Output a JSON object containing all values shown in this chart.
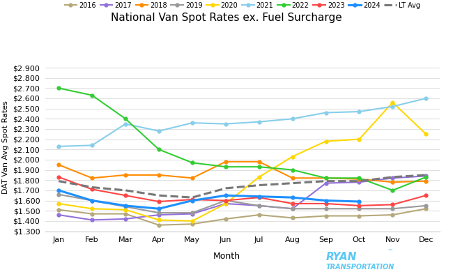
{
  "title": "National Van Spot Rates ex. Fuel Surcharge",
  "xlabel": "Month",
  "ylabel": "DAT Van Avg Spot Rates",
  "months": [
    "Jan",
    "Feb",
    "Mar",
    "Apr",
    "May",
    "Jun",
    "Jul",
    "Aug",
    "Sep",
    "Oct",
    "Nov",
    "Dec"
  ],
  "ylim": [
    1.3,
    2.95
  ],
  "yticks": [
    1.3,
    1.4,
    1.5,
    1.6,
    1.7,
    1.8,
    1.9,
    2.0,
    2.1,
    2.2,
    2.3,
    2.4,
    2.5,
    2.6,
    2.7,
    2.8,
    2.9
  ],
  "series": {
    "2016": {
      "color": "#b5a87a",
      "data": [
        1.51,
        1.47,
        1.47,
        1.36,
        1.37,
        1.42,
        1.46,
        1.43,
        1.45,
        1.45,
        1.46,
        1.52
      ],
      "marker": "o",
      "linestyle": "-",
      "linewidth": 1.5,
      "markersize": 3.5
    },
    "2017": {
      "color": "#9370DB",
      "data": [
        1.46,
        1.41,
        1.42,
        1.46,
        1.47,
        1.57,
        1.55,
        1.52,
        1.77,
        1.78,
        1.82,
        1.84
      ],
      "marker": "o",
      "linestyle": "-",
      "linewidth": 1.5,
      "markersize": 3.5
    },
    "2018": {
      "color": "#FF8C00",
      "data": [
        1.95,
        1.82,
        1.85,
        1.85,
        1.82,
        1.98,
        1.98,
        1.82,
        1.82,
        1.81,
        1.78,
        1.79
      ],
      "marker": "o",
      "linestyle": "-",
      "linewidth": 1.5,
      "markersize": 3.5
    },
    "2019": {
      "color": "#999999",
      "data": [
        1.66,
        1.6,
        1.54,
        1.48,
        1.48,
        1.6,
        1.55,
        1.52,
        1.52,
        1.52,
        1.52,
        1.55
      ],
      "marker": "o",
      "linestyle": "-",
      "linewidth": 1.5,
      "markersize": 3.5
    },
    "2020": {
      "color": "#FFD700",
      "data": [
        1.57,
        1.52,
        1.51,
        1.41,
        1.4,
        1.57,
        1.83,
        2.03,
        2.18,
        2.2,
        2.56,
        2.25
      ],
      "marker": "o",
      "linestyle": "-",
      "linewidth": 1.5,
      "markersize": 3.5
    },
    "2021": {
      "color": "#87CEEB",
      "data": [
        2.13,
        2.14,
        2.35,
        2.28,
        2.36,
        2.35,
        2.37,
        2.4,
        2.46,
        2.47,
        2.52,
        2.6
      ],
      "marker": "o",
      "linestyle": "-",
      "linewidth": 1.5,
      "markersize": 3.5
    },
    "2022": {
      "color": "#32CD32",
      "data": [
        2.7,
        2.63,
        2.4,
        2.1,
        1.97,
        1.93,
        1.93,
        1.9,
        1.82,
        1.82,
        1.7,
        1.83
      ],
      "marker": "o",
      "linestyle": "-",
      "linewidth": 1.5,
      "markersize": 3.5
    },
    "2023": {
      "color": "#FF4444",
      "data": [
        1.83,
        1.71,
        1.65,
        1.59,
        1.61,
        1.6,
        1.63,
        1.57,
        1.57,
        1.55,
        1.56,
        1.65
      ],
      "marker": "o",
      "linestyle": "-",
      "linewidth": 1.5,
      "markersize": 3.5
    },
    "2024": {
      "color": "#1E90FF",
      "data": [
        1.7,
        1.6,
        1.55,
        1.52,
        1.6,
        1.65,
        1.64,
        1.63,
        1.6,
        1.59,
        null,
        null
      ],
      "marker": "o",
      "linestyle": "-",
      "linewidth": 2.2,
      "markersize": 3.5
    },
    "LT Avg": {
      "color": "#777777",
      "data": [
        1.79,
        1.73,
        1.7,
        1.65,
        1.63,
        1.72,
        1.75,
        1.77,
        1.79,
        1.79,
        1.83,
        1.85
      ],
      "marker": "None",
      "linestyle": "--",
      "linewidth": 2.2,
      "markersize": 0
    }
  },
  "background_color": "#ffffff",
  "grid_color": "#e0e0e0",
  "legend_order": [
    "2016",
    "2017",
    "2018",
    "2019",
    "2020",
    "2021",
    "2022",
    "2023",
    "2024",
    "LT Avg"
  ],
  "dat_color": "#5BC8F5",
  "ryan_color": "#5BC8F5"
}
